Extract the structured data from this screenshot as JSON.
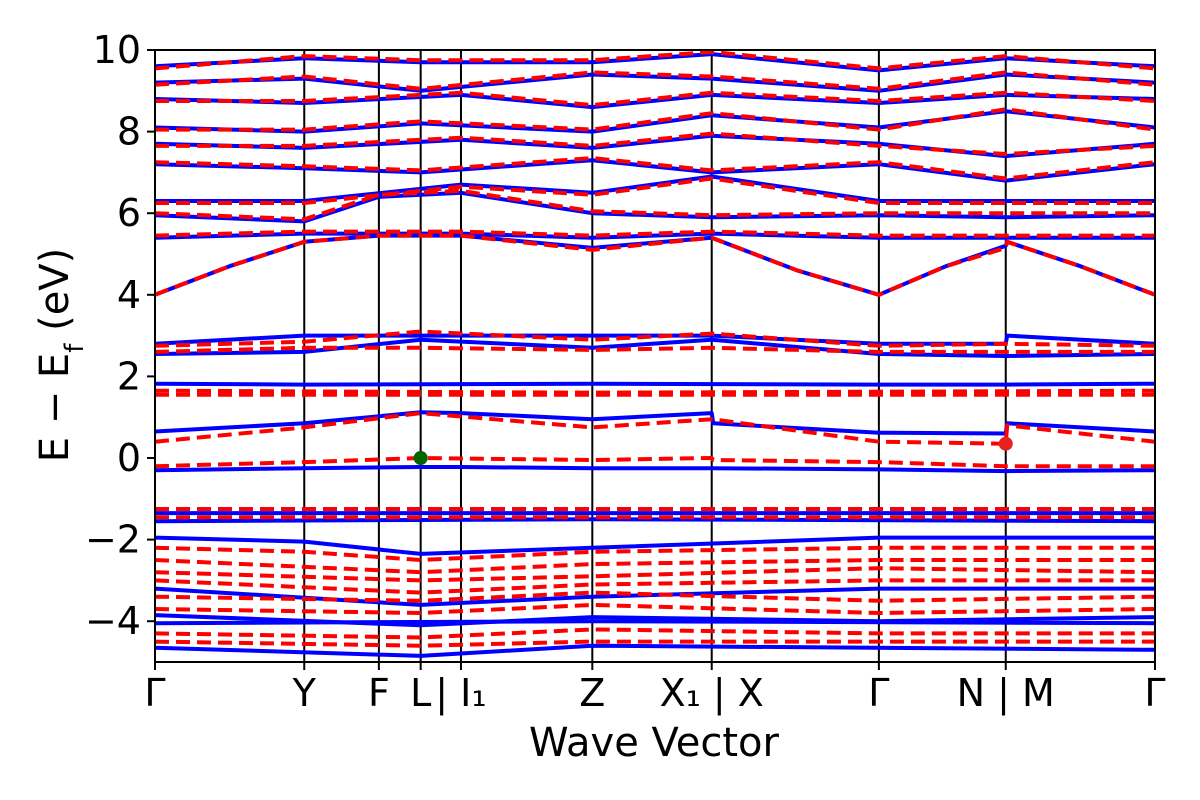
{
  "chart_data": {
    "type": "line",
    "title": "",
    "xlabel": "Wave Vector",
    "ylabel_main": "E − E",
    "ylabel_sub": "f",
    "ylabel_unit": " (eV)",
    "ylim": [
      -5,
      10
    ],
    "xlim": [
      0,
      10
    ],
    "yticks": [
      {
        "value": -4,
        "label": "−4"
      },
      {
        "value": -2,
        "label": "−2"
      },
      {
        "value": 0,
        "label": "0"
      },
      {
        "value": 2,
        "label": "2"
      },
      {
        "value": 4,
        "label": "4"
      },
      {
        "value": 6,
        "label": "6"
      },
      {
        "value": 8,
        "label": "8"
      },
      {
        "value": 10,
        "label": "10"
      }
    ],
    "xticks": [
      {
        "value": 0.0,
        "label": "Γ"
      },
      {
        "value": 1.0,
        "label": "Y"
      },
      {
        "value": 1.5,
        "label": "F"
      },
      {
        "value": 1.78,
        "label": "L"
      },
      {
        "value": 2.05,
        "label": "| I₁"
      },
      {
        "value": 2.93,
        "label": "Z"
      },
      {
        "value": 3.73,
        "label": "X₁ | X"
      },
      {
        "value": 4.85,
        "label": "Γ"
      },
      {
        "value": 5.7,
        "label": "N | M"
      },
      {
        "value": 6.7,
        "label": "Γ"
      }
    ],
    "vlines": [
      1.0,
      1.5,
      1.78,
      2.05,
      2.93,
      3.73,
      4.85,
      5.7
    ],
    "series_colors": {
      "solid": "#0000ff",
      "dashed": "#ff0000"
    },
    "markers": [
      {
        "x": 1.78,
        "y": 0.0,
        "color": "#006400"
      },
      {
        "x": 5.7,
        "y": 0.35,
        "color": "#e8201e"
      }
    ],
    "bands_solid": [
      [
        [
          0,
          0.65
        ],
        [
          1,
          0.85
        ],
        [
          1.78,
          1.12
        ],
        [
          2.05,
          1.1
        ],
        [
          2.93,
          0.95
        ],
        [
          3.73,
          1.1
        ],
        [
          3.74,
          0.85
        ],
        [
          4.85,
          0.62
        ],
        [
          5.7,
          0.6
        ],
        [
          5.71,
          0.85
        ],
        [
          6.7,
          0.65
        ]
      ],
      [
        [
          0,
          -0.3
        ],
        [
          1,
          -0.25
        ],
        [
          1.78,
          -0.22
        ],
        [
          2.05,
          -0.22
        ],
        [
          2.93,
          -0.25
        ],
        [
          3.73,
          -0.25
        ],
        [
          4.85,
          -0.28
        ],
        [
          5.7,
          -0.32
        ],
        [
          6.7,
          -0.3
        ]
      ],
      [
        [
          0,
          1.82
        ],
        [
          1,
          1.8
        ],
        [
          2.93,
          1.82
        ],
        [
          4.85,
          1.8
        ],
        [
          5.7,
          1.8
        ],
        [
          6.7,
          1.82
        ]
      ],
      [
        [
          0,
          2.55
        ],
        [
          1,
          2.6
        ],
        [
          1.78,
          2.9
        ],
        [
          2.93,
          2.7
        ],
        [
          3.73,
          2.9
        ],
        [
          4.85,
          2.55
        ],
        [
          5.7,
          2.5
        ],
        [
          6.7,
          2.55
        ]
      ],
      [
        [
          0,
          2.8
        ],
        [
          1,
          3.0
        ],
        [
          1.78,
          3.0
        ],
        [
          2.93,
          3.0
        ],
        [
          3.73,
          3.0
        ],
        [
          4.85,
          2.8
        ],
        [
          5.7,
          2.8
        ],
        [
          5.71,
          3.0
        ],
        [
          6.7,
          2.8
        ]
      ],
      [
        [
          0,
          -1.35
        ],
        [
          2.93,
          -1.35
        ],
        [
          6.7,
          -1.35
        ]
      ],
      [
        [
          0,
          -1.55
        ],
        [
          2.93,
          -1.5
        ],
        [
          6.7,
          -1.55
        ]
      ],
      [
        [
          0,
          -1.95
        ],
        [
          1,
          -2.05
        ],
        [
          1.78,
          -2.35
        ],
        [
          2.93,
          -2.2
        ],
        [
          4.85,
          -1.95
        ],
        [
          6.7,
          -1.95
        ]
      ],
      [
        [
          0,
          -3.2
        ],
        [
          1.78,
          -3.6
        ],
        [
          2.93,
          -3.4
        ],
        [
          4.85,
          -3.2
        ],
        [
          6.7,
          -3.2
        ]
      ],
      [
        [
          0,
          -3.85
        ],
        [
          1.78,
          -4.1
        ],
        [
          2.93,
          -3.9
        ],
        [
          4.85,
          -4.0
        ],
        [
          6.7,
          -3.9
        ]
      ],
      [
        [
          0,
          -4.05
        ],
        [
          2.93,
          -4.0
        ],
        [
          6.7,
          -4.05
        ]
      ],
      [
        [
          0,
          -4.65
        ],
        [
          1.78,
          -4.85
        ],
        [
          2.93,
          -4.6
        ],
        [
          6.7,
          -4.7
        ]
      ],
      [
        [
          0,
          4.0
        ],
        [
          0.5,
          4.7
        ],
        [
          1,
          5.3
        ],
        [
          1.5,
          5.45
        ],
        [
          2.05,
          5.45
        ],
        [
          2.93,
          5.15
        ],
        [
          3.73,
          5.4
        ],
        [
          4.3,
          4.6
        ],
        [
          4.85,
          4.0
        ],
        [
          5.3,
          4.7
        ],
        [
          5.7,
          5.2
        ],
        [
          5.71,
          5.3
        ],
        [
          6.2,
          4.7
        ],
        [
          6.7,
          4.0
        ]
      ],
      [
        [
          0,
          5.4
        ],
        [
          1,
          5.5
        ],
        [
          2.05,
          5.5
        ],
        [
          2.93,
          5.4
        ],
        [
          3.73,
          5.5
        ],
        [
          4.85,
          5.4
        ],
        [
          6.7,
          5.4
        ]
      ],
      [
        [
          0,
          5.95
        ],
        [
          1,
          5.8
        ],
        [
          1.5,
          6.4
        ],
        [
          2.05,
          6.5
        ],
        [
          2.93,
          6.0
        ],
        [
          3.73,
          5.9
        ],
        [
          4.85,
          5.95
        ],
        [
          5.7,
          5.9
        ],
        [
          6.7,
          5.95
        ]
      ],
      [
        [
          0,
          6.3
        ],
        [
          1,
          6.3
        ],
        [
          2.05,
          6.7
        ],
        [
          2.93,
          6.5
        ],
        [
          3.73,
          6.9
        ],
        [
          4.85,
          6.3
        ],
        [
          6.7,
          6.3
        ]
      ],
      [
        [
          0,
          7.2
        ],
        [
          1,
          7.1
        ],
        [
          1.78,
          7.0
        ],
        [
          2.93,
          7.3
        ],
        [
          3.73,
          7.0
        ],
        [
          4.85,
          7.2
        ],
        [
          5.7,
          6.8
        ],
        [
          6.7,
          7.2
        ]
      ],
      [
        [
          0,
          7.7
        ],
        [
          1,
          7.6
        ],
        [
          2.05,
          7.8
        ],
        [
          2.93,
          7.6
        ],
        [
          3.73,
          7.9
        ],
        [
          4.85,
          7.7
        ],
        [
          5.7,
          7.4
        ],
        [
          6.7,
          7.7
        ]
      ],
      [
        [
          0,
          8.1
        ],
        [
          1,
          8.0
        ],
        [
          1.78,
          8.2
        ],
        [
          2.93,
          8.0
        ],
        [
          3.73,
          8.4
        ],
        [
          4.85,
          8.1
        ],
        [
          5.7,
          8.5
        ],
        [
          6.7,
          8.1
        ]
      ],
      [
        [
          0,
          8.8
        ],
        [
          1,
          8.7
        ],
        [
          2.05,
          8.9
        ],
        [
          2.93,
          8.6
        ],
        [
          3.73,
          8.9
        ],
        [
          4.85,
          8.7
        ],
        [
          5.7,
          8.9
        ],
        [
          6.7,
          8.8
        ]
      ],
      [
        [
          0,
          9.2
        ],
        [
          1,
          9.3
        ],
        [
          1.78,
          9.0
        ],
        [
          2.93,
          9.4
        ],
        [
          3.73,
          9.3
        ],
        [
          4.85,
          9.0
        ],
        [
          5.7,
          9.4
        ],
        [
          6.7,
          9.2
        ]
      ],
      [
        [
          0,
          9.6
        ],
        [
          1,
          9.8
        ],
        [
          1.78,
          9.7
        ],
        [
          2.93,
          9.7
        ],
        [
          3.73,
          9.9
        ],
        [
          4.85,
          9.5
        ],
        [
          5.7,
          9.8
        ],
        [
          6.7,
          9.6
        ]
      ]
    ],
    "bands_dashed": [
      [
        [
          0,
          0.4
        ],
        [
          1,
          0.75
        ],
        [
          1.78,
          1.1
        ],
        [
          2.93,
          0.75
        ],
        [
          3.73,
          0.95
        ],
        [
          4.85,
          0.4
        ],
        [
          5.7,
          0.35
        ],
        [
          5.71,
          0.8
        ],
        [
          6.7,
          0.4
        ]
      ],
      [
        [
          0,
          -0.2
        ],
        [
          1,
          -0.1
        ],
        [
          1.78,
          0.0
        ],
        [
          2.93,
          -0.05
        ],
        [
          3.73,
          0.0
        ],
        [
          3.74,
          -0.05
        ],
        [
          4.85,
          -0.1
        ],
        [
          5.7,
          -0.2
        ],
        [
          6.7,
          -0.2
        ]
      ],
      [
        [
          0,
          1.65
        ],
        [
          2.93,
          1.6
        ],
        [
          6.7,
          1.65
        ]
      ],
      [
        [
          0,
          1.55
        ],
        [
          2.93,
          1.55
        ],
        [
          6.7,
          1.55
        ]
      ],
      [
        [
          0,
          2.6
        ],
        [
          1,
          2.7
        ],
        [
          1.78,
          2.7
        ],
        [
          2.93,
          2.65
        ],
        [
          3.73,
          2.7
        ],
        [
          4.85,
          2.6
        ],
        [
          5.7,
          2.6
        ],
        [
          6.7,
          2.6
        ]
      ],
      [
        [
          0,
          2.75
        ],
        [
          1,
          2.85
        ],
        [
          1.78,
          3.1
        ],
        [
          2.93,
          2.9
        ],
        [
          3.73,
          3.05
        ],
        [
          4.85,
          2.75
        ],
        [
          5.7,
          2.8
        ],
        [
          6.7,
          2.75
        ]
      ],
      [
        [
          0,
          -1.25
        ],
        [
          2.93,
          -1.25
        ],
        [
          6.7,
          -1.25
        ]
      ],
      [
        [
          0,
          -1.45
        ],
        [
          2.93,
          -1.45
        ],
        [
          6.7,
          -1.45
        ]
      ],
      [
        [
          0,
          -2.2
        ],
        [
          1,
          -2.3
        ],
        [
          1.78,
          -2.5
        ],
        [
          2.93,
          -2.3
        ],
        [
          4.85,
          -2.2
        ],
        [
          6.7,
          -2.2
        ]
      ],
      [
        [
          0,
          -2.5
        ],
        [
          1.78,
          -2.8
        ],
        [
          2.93,
          -2.6
        ],
        [
          4.85,
          -2.5
        ],
        [
          6.7,
          -2.5
        ]
      ],
      [
        [
          0,
          -2.8
        ],
        [
          1.78,
          -3.0
        ],
        [
          2.93,
          -2.9
        ],
        [
          4.85,
          -2.7
        ],
        [
          6.7,
          -2.8
        ]
      ],
      [
        [
          0,
          -3.0
        ],
        [
          1.78,
          -3.3
        ],
        [
          2.93,
          -3.1
        ],
        [
          4.85,
          -3.0
        ],
        [
          6.7,
          -3.0
        ]
      ],
      [
        [
          0,
          -3.4
        ],
        [
          1.78,
          -3.5
        ],
        [
          2.93,
          -3.3
        ],
        [
          4.85,
          -3.5
        ],
        [
          6.7,
          -3.4
        ]
      ],
      [
        [
          0,
          -3.7
        ],
        [
          1.78,
          -3.8
        ],
        [
          2.93,
          -3.6
        ],
        [
          4.85,
          -3.8
        ],
        [
          6.7,
          -3.7
        ]
      ],
      [
        [
          0,
          -4.3
        ],
        [
          1.78,
          -4.4
        ],
        [
          2.93,
          -4.2
        ],
        [
          4.85,
          -4.3
        ],
        [
          6.7,
          -4.3
        ]
      ],
      [
        [
          0,
          -4.5
        ],
        [
          1.78,
          -4.6
        ],
        [
          2.93,
          -4.5
        ],
        [
          6.7,
          -4.5
        ]
      ],
      [
        [
          0,
          4.0
        ],
        [
          0.5,
          4.7
        ],
        [
          1,
          5.3
        ],
        [
          1.5,
          5.45
        ],
        [
          2.05,
          5.45
        ],
        [
          2.93,
          5.1
        ],
        [
          3.73,
          5.4
        ],
        [
          4.3,
          4.6
        ],
        [
          4.85,
          4.0
        ],
        [
          5.3,
          4.7
        ],
        [
          5.7,
          5.15
        ],
        [
          5.71,
          5.3
        ],
        [
          6.2,
          4.7
        ],
        [
          6.7,
          4.0
        ]
      ],
      [
        [
          0,
          5.45
        ],
        [
          1,
          5.55
        ],
        [
          2.05,
          5.55
        ],
        [
          2.93,
          5.45
        ],
        [
          3.73,
          5.55
        ],
        [
          4.85,
          5.45
        ],
        [
          6.7,
          5.45
        ]
      ],
      [
        [
          0,
          6.0
        ],
        [
          1,
          5.85
        ],
        [
          1.5,
          6.45
        ],
        [
          2.05,
          6.55
        ],
        [
          2.93,
          6.05
        ],
        [
          3.73,
          5.95
        ],
        [
          4.85,
          6.0
        ],
        [
          6.7,
          6.0
        ]
      ],
      [
        [
          0,
          6.25
        ],
        [
          1,
          6.25
        ],
        [
          2.05,
          6.65
        ],
        [
          2.93,
          6.45
        ],
        [
          3.73,
          6.85
        ],
        [
          4.85,
          6.25
        ],
        [
          6.7,
          6.25
        ]
      ],
      [
        [
          0,
          7.25
        ],
        [
          1,
          7.15
        ],
        [
          1.78,
          7.05
        ],
        [
          2.93,
          7.35
        ],
        [
          3.73,
          7.05
        ],
        [
          4.85,
          7.25
        ],
        [
          5.7,
          6.85
        ],
        [
          6.7,
          7.25
        ]
      ],
      [
        [
          0,
          7.65
        ],
        [
          1,
          7.65
        ],
        [
          2.05,
          7.85
        ],
        [
          2.93,
          7.65
        ],
        [
          3.73,
          7.95
        ],
        [
          4.85,
          7.65
        ],
        [
          5.7,
          7.45
        ],
        [
          6.7,
          7.65
        ]
      ],
      [
        [
          0,
          8.05
        ],
        [
          1,
          8.05
        ],
        [
          1.78,
          8.25
        ],
        [
          2.93,
          8.05
        ],
        [
          3.73,
          8.45
        ],
        [
          4.85,
          8.05
        ],
        [
          5.7,
          8.55
        ],
        [
          6.7,
          8.05
        ]
      ],
      [
        [
          0,
          8.75
        ],
        [
          1,
          8.75
        ],
        [
          2.05,
          8.95
        ],
        [
          2.93,
          8.65
        ],
        [
          3.73,
          8.95
        ],
        [
          4.85,
          8.75
        ],
        [
          5.7,
          8.95
        ],
        [
          6.7,
          8.75
        ]
      ],
      [
        [
          0,
          9.15
        ],
        [
          1,
          9.35
        ],
        [
          1.78,
          9.05
        ],
        [
          2.93,
          9.45
        ],
        [
          3.73,
          9.35
        ],
        [
          4.85,
          9.05
        ],
        [
          5.7,
          9.45
        ],
        [
          6.7,
          9.15
        ]
      ],
      [
        [
          0,
          9.55
        ],
        [
          1,
          9.85
        ],
        [
          1.78,
          9.75
        ],
        [
          2.93,
          9.75
        ],
        [
          3.73,
          9.95
        ],
        [
          4.85,
          9.55
        ],
        [
          5.7,
          9.85
        ],
        [
          6.7,
          9.55
        ]
      ]
    ]
  }
}
